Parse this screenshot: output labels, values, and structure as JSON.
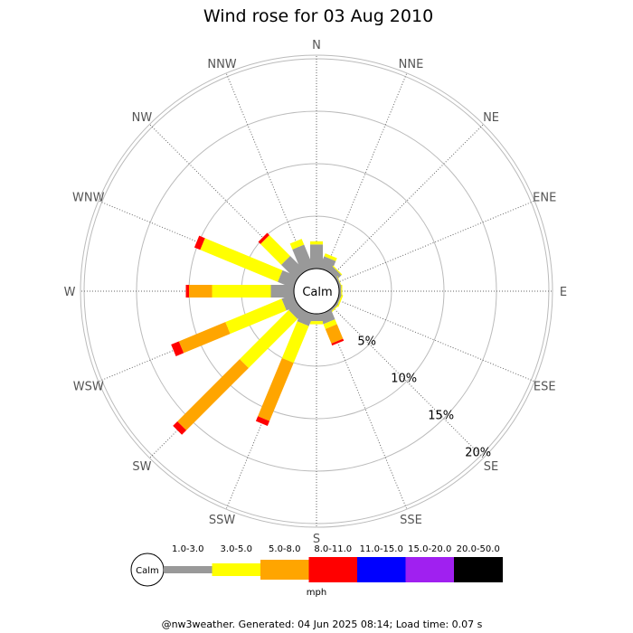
{
  "chart_data": {
    "type": "wind-rose",
    "title": "Wind rose for 03 Aug 2010",
    "calm_label": "Calm",
    "directions": [
      "N",
      "NNE",
      "NE",
      "ENE",
      "E",
      "ESE",
      "SE",
      "SSE",
      "S",
      "SSW",
      "SW",
      "WSW",
      "W",
      "WNW",
      "NW",
      "NNW"
    ],
    "rings": [
      {
        "value": 5,
        "label": "5%"
      },
      {
        "value": 10,
        "label": "10%"
      },
      {
        "value": 15,
        "label": "15%"
      },
      {
        "value": 20,
        "label": "20%"
      }
    ],
    "unit": "mph",
    "speed_bins": [
      {
        "label": "1.0-3.0",
        "color": "#999999"
      },
      {
        "label": "3.0-5.0",
        "color": "#ffff00"
      },
      {
        "label": "5.0-8.0",
        "color": "#ffa500"
      },
      {
        "label": "8.0-11.0",
        "color": "#ff0000"
      },
      {
        "label": "11.0-15.0",
        "color": "#0000ff"
      },
      {
        "label": "15.0-20.0",
        "color": "#a020f0"
      },
      {
        "label": "20.0-50.0",
        "color": "#000000"
      }
    ],
    "series": [
      {
        "direction": "N",
        "cumulative": [
          2.3,
          2.6,
          2.6,
          2.6,
          2.6,
          2.6,
          2.6
        ]
      },
      {
        "direction": "NNE",
        "cumulative": [
          1.2,
          1.5,
          1.5,
          1.5,
          1.5,
          1.5,
          1.5
        ]
      },
      {
        "direction": "NE",
        "cumulative": [
          0.6,
          0.7,
          0.7,
          0.7,
          0.7,
          0.7,
          0.7
        ]
      },
      {
        "direction": "ENE",
        "cumulative": [
          0.2,
          0.25,
          0.25,
          0.25,
          0.25,
          0.25,
          0.25
        ]
      },
      {
        "direction": "E",
        "cumulative": [
          0.2,
          0.3,
          0.3,
          0.3,
          0.3,
          0.3,
          0.3
        ]
      },
      {
        "direction": "ESE",
        "cumulative": [
          0.2,
          0.35,
          0.35,
          0.35,
          0.35,
          0.35,
          0.35
        ]
      },
      {
        "direction": "SE",
        "cumulative": [
          0.2,
          0.3,
          0.3,
          0.3,
          0.3,
          0.3,
          0.3
        ]
      },
      {
        "direction": "SSE",
        "cumulative": [
          1.0,
          1.5,
          3.0,
          3.2,
          3.2,
          3.2,
          3.2
        ]
      },
      {
        "direction": "S",
        "cumulative": [
          0.7,
          1.0,
          1.0,
          1.0,
          1.0,
          1.0,
          1.0
        ]
      },
      {
        "direction": "SSW",
        "cumulative": [
          1.2,
          5.0,
          11.0,
          11.5,
          11.5,
          11.5,
          11.5
        ]
      },
      {
        "direction": "SW",
        "cumulative": [
          1.0,
          7.6,
          16.0,
          16.6,
          16.6,
          16.6,
          16.6
        ]
      },
      {
        "direction": "WSW",
        "cumulative": [
          1.2,
          7.0,
          11.8,
          12.6,
          12.6,
          12.6,
          12.6
        ]
      },
      {
        "direction": "W",
        "cumulative": [
          2.2,
          7.8,
          10.0,
          10.3,
          10.3,
          10.3,
          10.3
        ]
      },
      {
        "direction": "WNW",
        "cumulative": [
          1.6,
          9.6,
          9.6,
          10.2,
          10.2,
          10.2,
          10.2
        ]
      },
      {
        "direction": "NW",
        "cumulative": [
          2.0,
          4.8,
          4.8,
          5.1,
          5.1,
          5.1,
          5.1
        ]
      },
      {
        "direction": "NNW",
        "cumulative": [
          2.4,
          3.0,
          3.0,
          3.0,
          3.0,
          3.0,
          3.0
        ]
      }
    ],
    "max_ring": 20
  },
  "footer": "@nw3weather. Generated: 04 Jun 2025 08:14; Load time: 0.07 s"
}
